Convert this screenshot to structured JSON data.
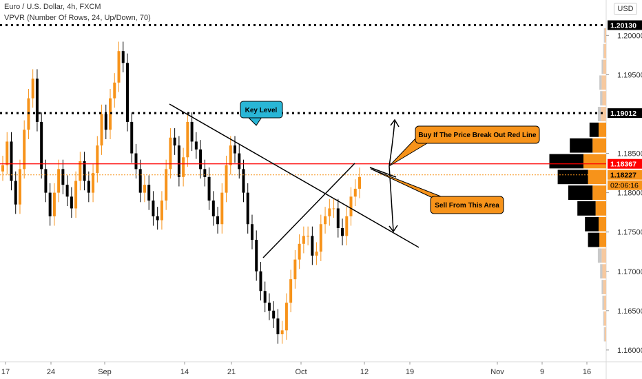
{
  "header": {
    "title": "Euro / U.S. Dollar, 4h, FXCM",
    "indicator": "VPVR (Number Of Rows, 24, Up/Down, 70)",
    "currency": "USD"
  },
  "chart_data": {
    "type": "candlestick",
    "y_ticks": [
      "1.20000",
      "1.19500",
      "1.18500",
      "1.18000",
      "1.17500",
      "1.17000",
      "1.16500",
      "1.16000"
    ],
    "x_ticks": [
      "17",
      "24",
      "Sep",
      "14",
      "21",
      "Oct",
      "12",
      "19",
      "Nov",
      "9",
      "16"
    ],
    "ylim": [
      1.1585,
      1.2045
    ],
    "levels": [
      {
        "label": "1.20130",
        "value": 1.2013,
        "style": "dotted",
        "color": "#000000"
      },
      {
        "label": "1.19012",
        "value": 1.19012,
        "style": "dotted",
        "color": "#000000"
      },
      {
        "label": "1.18367",
        "value": 1.18367,
        "style": "solid",
        "color": "#ff0000"
      },
      {
        "label": "1.18227",
        "value": 1.18227,
        "style": "dotted-thin",
        "color": "#f7931a"
      }
    ],
    "countdown": "02:06:16",
    "close_approx": [
      1.1835,
      1.1865,
      1.1815,
      1.1785,
      1.183,
      1.188,
      1.192,
      1.1945,
      1.189,
      1.183,
      1.18,
      1.177,
      1.18,
      1.183,
      1.181,
      1.1795,
      1.178,
      1.1815,
      1.184,
      1.1815,
      1.18,
      1.1825,
      1.186,
      1.19,
      1.188,
      1.192,
      1.194,
      1.198,
      1.1965,
      1.189,
      1.185,
      1.183,
      1.18,
      1.181,
      1.179,
      1.177,
      1.1765,
      1.179,
      1.183,
      1.187,
      1.186,
      1.182,
      1.1845,
      1.189,
      1.1865,
      1.1855,
      1.183,
      1.182,
      1.179,
      1.177,
      1.176,
      1.18,
      1.1835,
      1.186,
      1.185,
      1.183,
      1.18,
      1.176,
      1.174,
      1.17,
      1.1675,
      1.166,
      1.165,
      1.164,
      1.162,
      1.1625,
      1.166,
      1.169,
      1.1715,
      1.1735,
      1.1745,
      1.1745,
      1.172,
      1.1725,
      1.176,
      1.177,
      1.178,
      1.178,
      1.1755,
      1.1745,
      1.177,
      1.1795,
      1.1805,
      1.182
    ],
    "annotations": [
      {
        "text": "Key Level",
        "color": "#29b6d6"
      },
      {
        "text": "Buy If The Price Break Out Red Line",
        "color": "#f7931a"
      },
      {
        "text": "Sell From This Area",
        "color": "#f7931a"
      }
    ],
    "volume_profile": [
      {
        "price": 1.2,
        "up": 0.02,
        "down": 0.01
      },
      {
        "price": 1.198,
        "up": 0.03,
        "down": 0.01
      },
      {
        "price": 1.196,
        "up": 0.04,
        "down": 0.02
      },
      {
        "price": 1.194,
        "up": 0.06,
        "down": 0.03
      },
      {
        "price": 1.192,
        "up": 0.05,
        "down": 0.03
      },
      {
        "price": 1.19,
        "up": 0.07,
        "down": 0.04
      },
      {
        "price": 1.188,
        "up": 0.1,
        "down": 0.12
      },
      {
        "price": 1.186,
        "up": 0.18,
        "down": 0.3
      },
      {
        "price": 1.184,
        "up": 0.3,
        "down": 0.45
      },
      {
        "price": 1.182,
        "up": 0.24,
        "down": 0.4
      },
      {
        "price": 1.18,
        "up": 0.18,
        "down": 0.32
      },
      {
        "price": 1.178,
        "up": 0.14,
        "down": 0.24
      },
      {
        "price": 1.176,
        "up": 0.1,
        "down": 0.18
      },
      {
        "price": 1.174,
        "up": 0.09,
        "down": 0.15
      },
      {
        "price": 1.172,
        "up": 0.06,
        "down": 0.05
      },
      {
        "price": 1.17,
        "up": 0.05,
        "down": 0.03
      },
      {
        "price": 1.168,
        "up": 0.04,
        "down": 0.02
      },
      {
        "price": 1.166,
        "up": 0.03,
        "down": 0.02
      },
      {
        "price": 1.164,
        "up": 0.03,
        "down": 0.01
      },
      {
        "price": 1.162,
        "up": 0.02,
        "down": 0.01
      }
    ]
  },
  "colors": {
    "up": "#f7931a",
    "down": "#000000",
    "red_line": "#ff0000",
    "key_level": "#29b6d6",
    "callout": "#f7931a"
  }
}
